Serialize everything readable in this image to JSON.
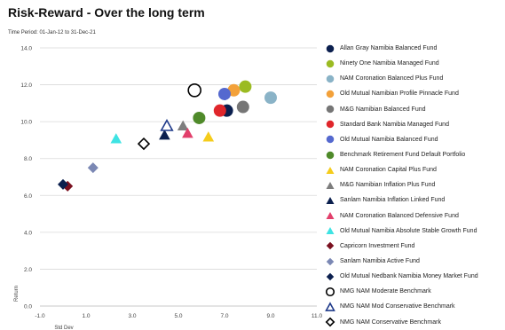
{
  "title": "Risk-Reward - Over the long term",
  "subtitle": "Time Period: 01-Jan-12 to 31-Dec-21",
  "chart_data": {
    "type": "scatter",
    "title": "Risk-Reward - Over the long term",
    "xlabel": "Std Dev",
    "ylabel": "Return",
    "xlim": [
      -1.0,
      11.0
    ],
    "ylim": [
      0.0,
      14.0
    ],
    "x_ticks": [
      "-1.0",
      "1.0",
      "3.0",
      "5.0",
      "7.0",
      "9.0",
      "11.0"
    ],
    "y_ticks": [
      "0.0",
      "2.0",
      "4.0",
      "6.0",
      "8.0",
      "10.0",
      "12.0",
      "14.0"
    ],
    "grid": "horizontal",
    "legend_position": "right",
    "series": [
      {
        "name": "Allan Gray Namibia Balanced Fund",
        "marker": "circle",
        "color": "#0b1f4e",
        "x": 7.1,
        "y": 10.6
      },
      {
        "name": "Ninety One Namibia Managed Fund",
        "marker": "circle",
        "color": "#9bbb22",
        "x": 7.9,
        "y": 11.9
      },
      {
        "name": "NAM Coronation Balanced Plus Fund",
        "marker": "circle",
        "color": "#8ab3c7",
        "x": 9.0,
        "y": 11.3
      },
      {
        "name": "Old Mutual Namibian Profile Pinnacle Fund",
        "marker": "circle",
        "color": "#f3a13a",
        "x": 7.4,
        "y": 11.7
      },
      {
        "name": "M&G Namibian Balanced Fund",
        "marker": "circle",
        "color": "#767676",
        "x": 7.8,
        "y": 10.8
      },
      {
        "name": "Standard Bank Namibia Managed Fund",
        "marker": "circle",
        "color": "#e0262b",
        "x": 6.8,
        "y": 10.6
      },
      {
        "name": "Old Mutual Namibia Balanced Fund",
        "marker": "circle",
        "color": "#5569cf",
        "x": 7.0,
        "y": 11.5
      },
      {
        "name": "Benchmark Retirement Fund Default Portfolio",
        "marker": "circle",
        "color": "#4f8a2a",
        "x": 5.9,
        "y": 10.2
      },
      {
        "name": "NAM Coronation Capital Plus Fund",
        "marker": "triangle",
        "color": "#f5cc1b",
        "x": 6.3,
        "y": 9.2
      },
      {
        "name": "M&G Namibian Inflation Plus Fund",
        "marker": "triangle",
        "color": "#7d7d7d",
        "x": 5.2,
        "y": 9.8
      },
      {
        "name": "Sanlam Namibia Inflation Linked Fund",
        "marker": "triangle",
        "color": "#0b1f4e",
        "x": 4.4,
        "y": 9.3
      },
      {
        "name": "NAM Coronation Balanced Defensive Fund",
        "marker": "triangle",
        "color": "#e23f6b",
        "x": 5.4,
        "y": 9.4
      },
      {
        "name": "Old Mutual Namibia Absolute Stable Growth Fund",
        "marker": "triangle",
        "color": "#3ee3e3",
        "x": 2.3,
        "y": 9.1
      },
      {
        "name": "Capricorn Investment Fund",
        "marker": "diamond",
        "color": "#7a1020",
        "x": 0.2,
        "y": 6.5
      },
      {
        "name": "Sanlam Namibia Active Fund",
        "marker": "diamond",
        "color": "#7b88b4",
        "x": 1.3,
        "y": 7.5
      },
      {
        "name": "Old Mutual Nedbank Namibia Money Market Fund",
        "marker": "diamond",
        "color": "#0b1f4e",
        "x": 0.0,
        "y": 6.6
      },
      {
        "name": "NMG NAM Moderate Benchmark",
        "marker": "circle-open",
        "color": "#000000",
        "x": 5.7,
        "y": 11.7
      },
      {
        "name": "NMG NAM Mod Conservative Benchmark",
        "marker": "triangle-open",
        "color": "#1f3a8a",
        "x": 4.5,
        "y": 9.8
      },
      {
        "name": "NMG NAM Conservative Benchmark",
        "marker": "diamond-open",
        "color": "#000000",
        "x": 3.5,
        "y": 8.8
      }
    ]
  }
}
